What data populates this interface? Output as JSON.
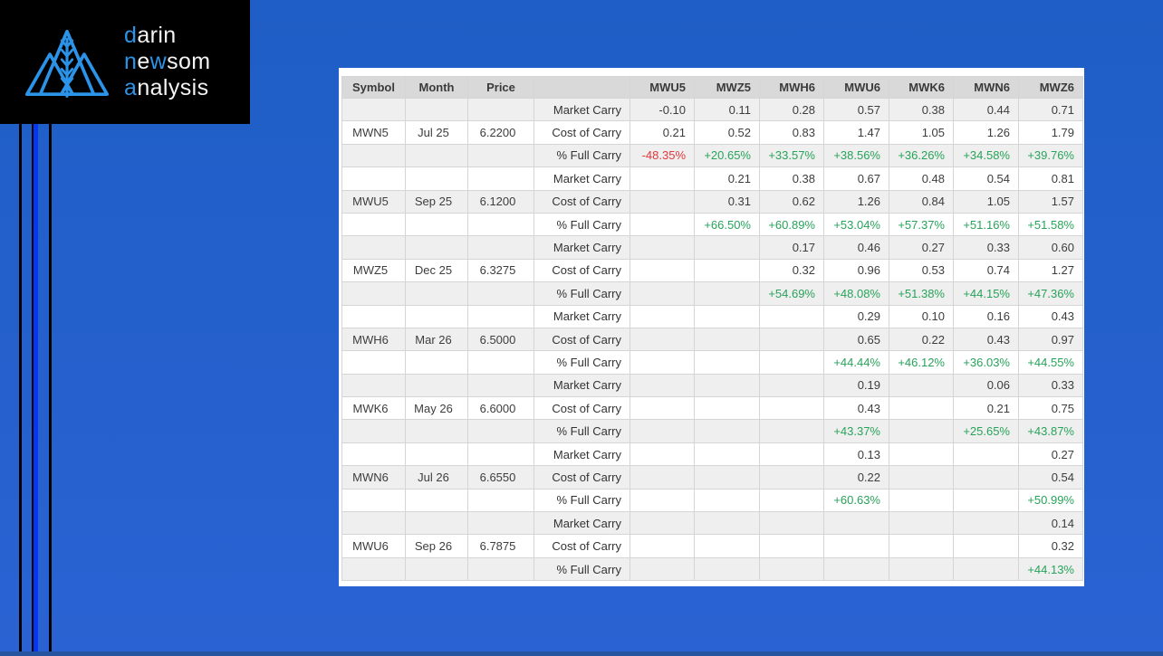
{
  "colors": {
    "background_top": "#1f5ec6",
    "background_bottom": "#2a62d3",
    "bottom_edge": "#26549e",
    "stripe_black": "#000000",
    "stripe_blue": "#0636f2",
    "logo_accent_blue": "#2b93e8",
    "positive_green": "#28a35a",
    "negative_red": "#e5383b",
    "header_gray": "#d9d9d9",
    "row_stripe_gray": "#efefef"
  },
  "logo": {
    "l1a": "d",
    "l1b": "arin",
    "l2a": "n",
    "l2b": "e",
    "l2c": "w",
    "l2d": "som",
    "l3a": "a",
    "l3b": "nalysis",
    "mark": "mountains-with-wheat"
  },
  "chart_data": {
    "type": "table",
    "title": "",
    "columns": [
      "Symbol",
      "Month",
      "Price",
      "",
      "MWU5",
      "MWZ5",
      "MWH6",
      "MWU6",
      "MWK6",
      "MWN6",
      "MWZ6"
    ],
    "row_labels": {
      "market": "Market Carry",
      "cost": "Cost of Carry",
      "pct": "% Full Carry"
    },
    "groups": [
      {
        "symbol": "MWN5",
        "month": "Jul 25",
        "price": "6.2200",
        "market": [
          "-0.10",
          "0.11",
          "0.28",
          "0.57",
          "0.38",
          "0.44",
          "0.71"
        ],
        "cost": [
          "0.21",
          "0.52",
          "0.83",
          "1.47",
          "1.05",
          "1.26",
          "1.79"
        ],
        "pct": [
          "-48.35%",
          "+20.65%",
          "+33.57%",
          "+38.56%",
          "+36.26%",
          "+34.58%",
          "+39.76%"
        ]
      },
      {
        "symbol": "MWU5",
        "month": "Sep 25",
        "price": "6.1200",
        "market": [
          "",
          "0.21",
          "0.38",
          "0.67",
          "0.48",
          "0.54",
          "0.81"
        ],
        "cost": [
          "",
          "0.31",
          "0.62",
          "1.26",
          "0.84",
          "1.05",
          "1.57"
        ],
        "pct": [
          "",
          "+66.50%",
          "+60.89%",
          "+53.04%",
          "+57.37%",
          "+51.16%",
          "+51.58%"
        ]
      },
      {
        "symbol": "MWZ5",
        "month": "Dec 25",
        "price": "6.3275",
        "market": [
          "",
          "",
          "0.17",
          "0.46",
          "0.27",
          "0.33",
          "0.60"
        ],
        "cost": [
          "",
          "",
          "0.32",
          "0.96",
          "0.53",
          "0.74",
          "1.27"
        ],
        "pct": [
          "",
          "",
          "+54.69%",
          "+48.08%",
          "+51.38%",
          "+44.15%",
          "+47.36%"
        ]
      },
      {
        "symbol": "MWH6",
        "month": "Mar 26",
        "price": "6.5000",
        "market": [
          "",
          "",
          "",
          "0.29",
          "0.10",
          "0.16",
          "0.43"
        ],
        "cost": [
          "",
          "",
          "",
          "0.65",
          "0.22",
          "0.43",
          "0.97"
        ],
        "pct": [
          "",
          "",
          "",
          "+44.44%",
          "+46.12%",
          "+36.03%",
          "+44.55%"
        ]
      },
      {
        "symbol": "MWK6",
        "month": "May 26",
        "price": "6.6000",
        "market": [
          "",
          "",
          "",
          "0.19",
          "",
          "0.06",
          "0.33"
        ],
        "cost": [
          "",
          "",
          "",
          "0.43",
          "",
          "0.21",
          "0.75"
        ],
        "pct": [
          "",
          "",
          "",
          "+43.37%",
          "",
          "+25.65%",
          "+43.87%"
        ]
      },
      {
        "symbol": "MWN6",
        "month": "Jul 26",
        "price": "6.6550",
        "market": [
          "",
          "",
          "",
          "0.13",
          "",
          "",
          "0.27"
        ],
        "cost": [
          "",
          "",
          "",
          "0.22",
          "",
          "",
          "0.54"
        ],
        "pct": [
          "",
          "",
          "",
          "+60.63%",
          "",
          "",
          "+50.99%"
        ]
      },
      {
        "symbol": "MWU6",
        "month": "Sep 26",
        "price": "6.7875",
        "market": [
          "",
          "",
          "",
          "",
          "",
          "",
          "0.14"
        ],
        "cost": [
          "",
          "",
          "",
          "",
          "",
          "",
          "0.32"
        ],
        "pct": [
          "",
          "",
          "",
          "",
          "",
          "",
          "+44.13%"
        ]
      }
    ]
  }
}
